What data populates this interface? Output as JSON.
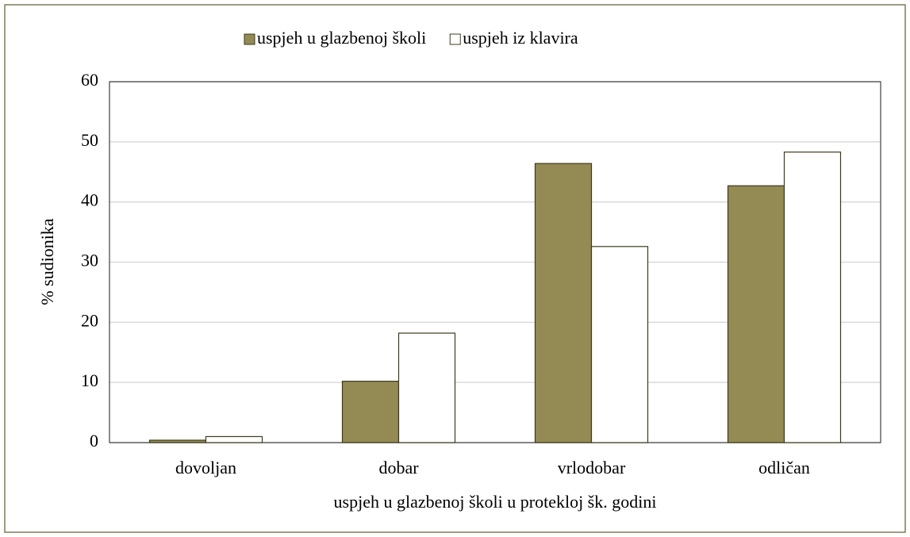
{
  "chart_data": {
    "type": "bar",
    "categories": [
      "dovoljan",
      "dobar",
      "vrlodobar",
      "odličan"
    ],
    "series": [
      {
        "name": "uspjeh u glazbenoj školi",
        "color": "#948a54",
        "values": [
          0.4,
          10.2,
          46.4,
          42.7
        ]
      },
      {
        "name": "uspjeh iz klavira",
        "color": "#ffffff",
        "values": [
          1.0,
          18.2,
          32.6,
          48.3
        ]
      }
    ],
    "xlabel": "uspjeh u glazbenoj školi u protekloj šk. godini",
    "ylabel": "% sudionika",
    "ylim": [
      0,
      60
    ],
    "yticks": [
      0,
      10,
      20,
      30,
      40,
      50,
      60
    ],
    "grid": true,
    "legend": "top"
  }
}
